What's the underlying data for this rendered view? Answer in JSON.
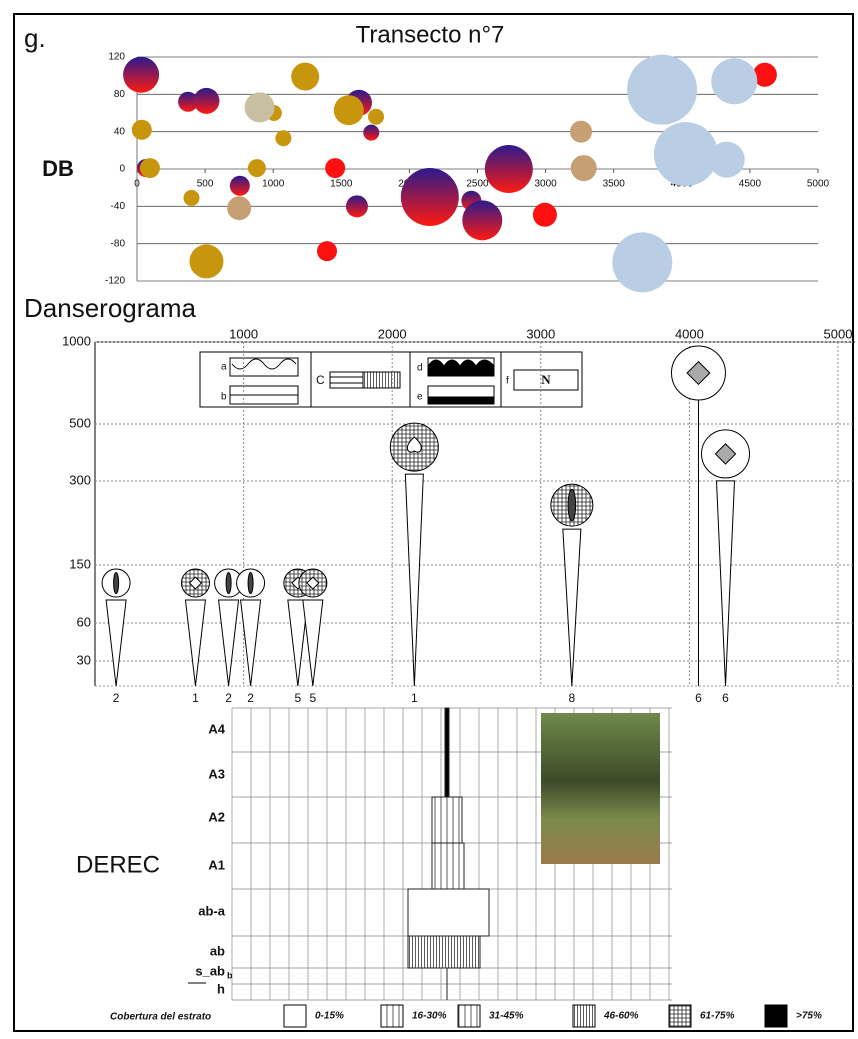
{
  "panel_label": "g.",
  "chart_data": {
    "type": "bubble",
    "title": "Transecto n°7",
    "ylabel": "DB",
    "xlim": [
      0,
      5000
    ],
    "xticks": [
      0,
      500,
      1000,
      1500,
      2000,
      2500,
      3000,
      3500,
      4000,
      4500,
      5000
    ],
    "ylim": [
      -120,
      120
    ],
    "yticks": [
      -120,
      -80,
      -40,
      0,
      40,
      80,
      120
    ],
    "grid": true,
    "series": [
      {
        "color": [
          "#2a1a8e",
          "#ff1a10"
        ],
        "x": [
          30,
          65,
          375,
          510,
          755,
          1630,
          1720,
          1615,
          2150,
          2455,
          2535,
          2730,
          3920
        ],
        "values": [
          101,
          1,
          72,
          73,
          -18,
          71,
          39,
          -40,
          -30,
          -34,
          -55,
          0,
          86
        ],
        "sizes": [
          18,
          9,
          10,
          13,
          10,
          13,
          8,
          11,
          29,
          10,
          20,
          24,
          11
        ]
      },
      {
        "color": "#ff1010",
        "x": [
          1455,
          1395,
          2995,
          4610
        ],
        "values": [
          1,
          -88,
          -49,
          101
        ],
        "sizes": [
          10,
          10,
          12,
          12
        ]
      },
      {
        "color": "#c8960c",
        "x": [
          35,
          95,
          400,
          510,
          1005,
          880,
          1075,
          1235,
          1555,
          1755
        ],
        "values": [
          42,
          1,
          -31,
          -99,
          60,
          1,
          33,
          99,
          63,
          56
        ],
        "sizes": [
          10,
          10,
          8,
          17,
          8,
          9,
          8,
          14,
          15,
          8
        ]
      },
      {
        "color": "#c9bfa2",
        "x": [
          900
        ],
        "values": [
          66
        ],
        "sizes": [
          15
        ]
      },
      {
        "color": "#c79f74",
        "x": [
          750,
          3260,
          3280
        ],
        "values": [
          -42,
          40,
          1
        ],
        "sizes": [
          12,
          11,
          13
        ]
      },
      {
        "color": "#b9cde4",
        "x": [
          3855,
          4030,
          4330,
          4385,
          3710
        ],
        "values": [
          85,
          16,
          10,
          94,
          -100
        ],
        "sizes": [
          35,
          32,
          18,
          23,
          30
        ]
      }
    ]
  },
  "danserograma": {
    "title": "Danserograma",
    "xlim": [
      0,
      5000
    ],
    "xticks": [
      1000,
      2000,
      3000,
      4000,
      5000
    ],
    "yticks": [
      1000,
      500,
      300,
      150,
      60,
      30
    ],
    "legend": {
      "a": "a",
      "b": "b",
      "c": "C",
      "d": "d",
      "e": "e",
      "f": "f",
      "n": "N"
    },
    "plants": [
      {
        "label": "2",
        "x": 142,
        "height": 122,
        "symbol": "lens"
      },
      {
        "label": "1",
        "x": 676,
        "height": 122,
        "symbol": "grid-diamond"
      },
      {
        "label": "2",
        "x": 899,
        "height": 122,
        "symbol": "lens"
      },
      {
        "label": "2",
        "x": 1047,
        "height": 122,
        "symbol": "lens"
      },
      {
        "label": "5",
        "x": 1365,
        "height": 122,
        "symbol": "grid-diamond"
      },
      {
        "label": "5",
        "x": 1466,
        "height": 122,
        "symbol": "grid-diamond"
      },
      {
        "label": "1",
        "x": 2149,
        "height": 419,
        "symbol": "grid-spade"
      },
      {
        "label": "8",
        "x": 3209,
        "height": 257,
        "symbol": "grid-lens"
      },
      {
        "label": "6",
        "x": 4061,
        "height": 811,
        "symbol": "diamond",
        "stem": "line"
      },
      {
        "label": "6",
        "x": 4243,
        "height": 395,
        "symbol": "diamond"
      }
    ]
  },
  "derec": {
    "title": "DEREC",
    "strata": [
      "A4",
      "A3",
      "A2",
      "A1",
      "ab-a",
      "ab",
      "s_ab",
      "h"
    ],
    "subscript": "b",
    "legend_title": "Cobertura del estrato",
    "classes": [
      "0-15%",
      "16-30%",
      "31-45%",
      "46-60%",
      "61-75%",
      ">75%"
    ]
  }
}
